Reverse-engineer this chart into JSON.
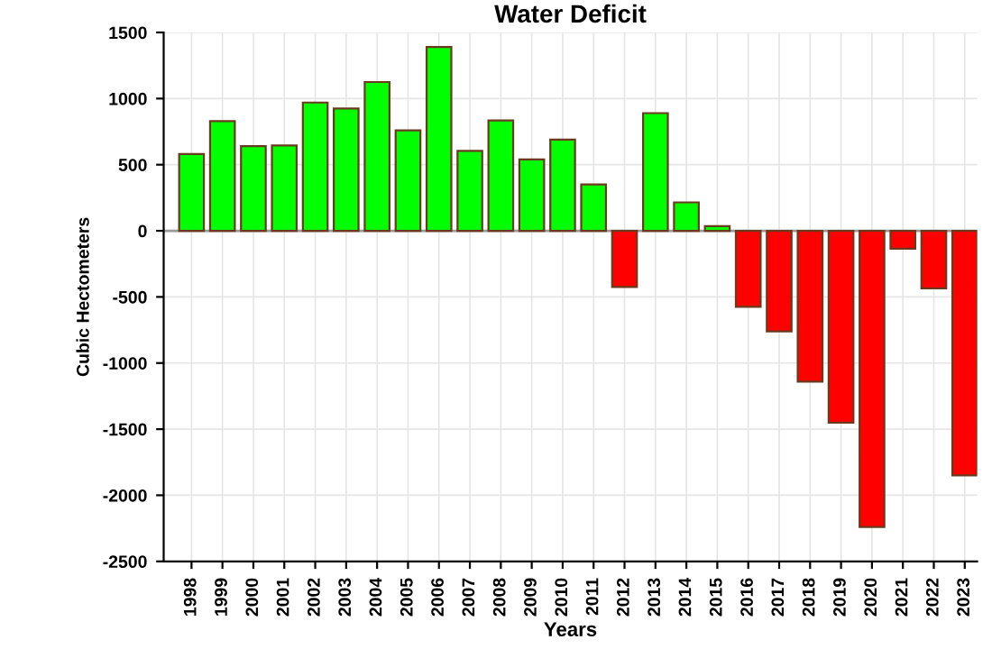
{
  "chart_data": {
    "type": "bar",
    "title": "Water Deficit",
    "xlabel": "Years",
    "ylabel": "Cubic Hectometers",
    "categories": [
      "1998",
      "1999",
      "2000",
      "2001",
      "2002",
      "2003",
      "2004",
      "2005",
      "2006",
      "2007",
      "2008",
      "2009",
      "2010",
      "2011",
      "2012",
      "2013",
      "2014",
      "2015",
      "2016",
      "2017",
      "2018",
      "2019",
      "2020",
      "2021",
      "2022",
      "2023"
    ],
    "values": [
      580,
      830,
      640,
      645,
      970,
      925,
      1125,
      760,
      1390,
      605,
      835,
      540,
      690,
      350,
      -425,
      890,
      215,
      35,
      -575,
      -760,
      -1140,
      -1450,
      -2240,
      -135,
      -435,
      -1850
    ],
    "colors": [
      "#00ff00",
      "#00ff00",
      "#00ff00",
      "#00ff00",
      "#00ff00",
      "#00ff00",
      "#00ff00",
      "#00ff00",
      "#00ff00",
      "#00ff00",
      "#00ff00",
      "#00ff00",
      "#00ff00",
      "#00ff00",
      "#ff0000",
      "#00ff00",
      "#00ff00",
      "#00ff00",
      "#ff0000",
      "#ff0000",
      "#ff0000",
      "#ff0000",
      "#ff0000",
      "#ff0000",
      "#ff0000",
      "#ff0000"
    ],
    "ylim": [
      -2500,
      1500
    ],
    "yticks": [
      -2500,
      -2000,
      -1500,
      -1000,
      -500,
      0,
      500,
      1000,
      1500
    ],
    "grid": true
  }
}
